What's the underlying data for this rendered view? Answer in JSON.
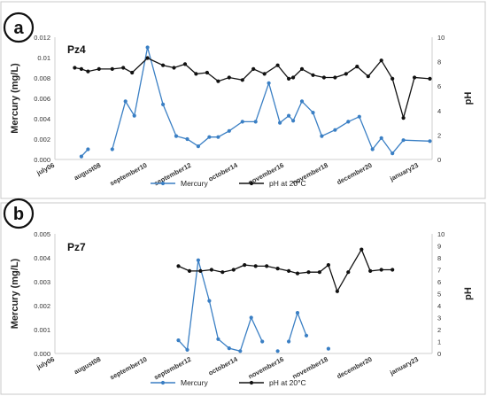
{
  "chart_data": [
    {
      "type": "line",
      "badge": "a",
      "title": "Pz4",
      "ylabel": "Mercury (mg/L)",
      "y2label": "pH",
      "ylim": [
        0,
        0.012
      ],
      "yticks": [
        "0.000",
        "0.002",
        "0.004",
        "0.006",
        "0.008",
        "0.01",
        "0.012"
      ],
      "y2lim": [
        0,
        10
      ],
      "y2ticks": [
        "0",
        "2",
        "4",
        "6",
        "8",
        "10"
      ],
      "xlim": [
        2006.5,
        2023.6
      ],
      "xticks": [
        {
          "label": "july06",
          "x": 2006.5
        },
        {
          "label": "august08",
          "x": 2008.6
        },
        {
          "label": "september10",
          "x": 2010.7
        },
        {
          "label": "september12",
          "x": 2012.7
        },
        {
          "label": "october14",
          "x": 2014.8
        },
        {
          "label": "november16",
          "x": 2016.9
        },
        {
          "label": "november18",
          "x": 2018.9
        },
        {
          "label": "december20",
          "x": 2020.9
        },
        {
          "label": "january23",
          "x": 2023.0
        }
      ],
      "legend": [
        "Mercury",
        "pH at 20°C"
      ],
      "series": [
        {
          "name": "Mercury",
          "axis": "left",
          "color": "#3a7fc4",
          "segments": [
            [
              [
                2007.7,
                0.0003
              ],
              [
                2008.0,
                0.001
              ]
            ],
            [
              [
                2009.1,
                0.001
              ],
              [
                2009.7,
                0.0057
              ],
              [
                2010.1,
                0.0043
              ],
              [
                2010.7,
                0.011
              ],
              [
                2011.4,
                0.0054
              ],
              [
                2012.0,
                0.0023
              ],
              [
                2012.5,
                0.002
              ],
              [
                2013.0,
                0.0013
              ],
              [
                2013.5,
                0.0022
              ],
              [
                2013.9,
                0.0022
              ],
              [
                2014.4,
                0.0028
              ],
              [
                2015.0,
                0.0037
              ],
              [
                2015.6,
                0.0037
              ],
              [
                2016.2,
                0.0075
              ],
              [
                2016.7,
                0.0036
              ],
              [
                2017.1,
                0.0043
              ],
              [
                2017.3,
                0.0038
              ],
              [
                2017.7,
                0.0057
              ],
              [
                2018.2,
                0.0046
              ],
              [
                2018.6,
                0.0023
              ],
              [
                2019.2,
                0.0029
              ],
              [
                2019.8,
                0.0037
              ],
              [
                2020.3,
                0.0042
              ],
              [
                2020.9,
                0.001
              ],
              [
                2021.3,
                0.0021
              ],
              [
                2021.8,
                0.0006
              ],
              [
                2022.3,
                0.0019
              ],
              [
                2023.5,
                0.0018
              ]
            ]
          ]
        },
        {
          "name": "pH at 20°C",
          "axis": "right",
          "color": "#111111",
          "segments": [
            [
              [
                2007.4,
                7.5
              ],
              [
                2007.7,
                7.4
              ],
              [
                2008.0,
                7.2
              ],
              [
                2008.5,
                7.4
              ],
              [
                2009.1,
                7.4
              ],
              [
                2009.6,
                7.5
              ],
              [
                2010.0,
                7.1
              ],
              [
                2010.7,
                8.3
              ],
              [
                2011.4,
                7.7
              ],
              [
                2011.9,
                7.5
              ],
              [
                2012.4,
                7.8
              ],
              [
                2012.9,
                7.0
              ],
              [
                2013.4,
                7.1
              ],
              [
                2013.9,
                6.4
              ],
              [
                2014.4,
                6.7
              ],
              [
                2015.0,
                6.5
              ],
              [
                2015.5,
                7.4
              ],
              [
                2016.0,
                7.0
              ],
              [
                2016.6,
                7.7
              ],
              [
                2017.1,
                6.6
              ],
              [
                2017.3,
                6.7
              ],
              [
                2017.7,
                7.4
              ],
              [
                2018.2,
                6.9
              ],
              [
                2018.7,
                6.7
              ],
              [
                2019.2,
                6.7
              ],
              [
                2019.7,
                7.0
              ],
              [
                2020.2,
                7.6
              ],
              [
                2020.7,
                6.8
              ],
              [
                2021.3,
                8.1
              ],
              [
                2021.8,
                6.6
              ],
              [
                2022.3,
                3.4
              ],
              [
                2022.8,
                6.7
              ],
              [
                2023.5,
                6.6
              ]
            ]
          ]
        }
      ]
    },
    {
      "type": "line",
      "badge": "b",
      "title": "Pz7",
      "ylabel": "Mercury (mg/L)",
      "y2label": "pH",
      "ylim": [
        0,
        0.005
      ],
      "yticks": [
        "0.000",
        "0.001",
        "0.002",
        "0.003",
        "0.004",
        "0.005"
      ],
      "y2lim": [
        0,
        10
      ],
      "y2ticks": [
        "0",
        "1",
        "2",
        "3",
        "4",
        "5",
        "6",
        "7",
        "8",
        "9",
        "10"
      ],
      "xlim": [
        2006.5,
        2023.6
      ],
      "xticks": [
        {
          "label": "july06",
          "x": 2006.5
        },
        {
          "label": "august08",
          "x": 2008.6
        },
        {
          "label": "september10",
          "x": 2010.7
        },
        {
          "label": "september12",
          "x": 2012.7
        },
        {
          "label": "october14",
          "x": 2014.8
        },
        {
          "label": "november16",
          "x": 2016.9
        },
        {
          "label": "november18",
          "x": 2018.9
        },
        {
          "label": "december20",
          "x": 2020.9
        },
        {
          "label": "january23",
          "x": 2023.0
        }
      ],
      "legend": [
        "Mercury",
        "pH at 20°C"
      ],
      "series": [
        {
          "name": "Mercury",
          "axis": "left",
          "color": "#3a7fc4",
          "segments": [
            [
              [
                2012.1,
                0.00055
              ],
              [
                2012.5,
                0.00015
              ],
              [
                2013.0,
                0.0039
              ],
              [
                2013.5,
                0.0022
              ],
              [
                2013.9,
                0.0006
              ],
              [
                2014.4,
                0.00022
              ],
              [
                2014.9,
                0.0001
              ],
              [
                2015.4,
                0.0015
              ],
              [
                2015.9,
                0.0005
              ]
            ],
            [
              [
                2016.6,
                0.0001
              ]
            ],
            [
              [
                2017.1,
                0.0005
              ],
              [
                2017.5,
                0.0017
              ],
              [
                2017.9,
                0.00075
              ]
            ],
            [
              [
                2018.9,
                0.0002
              ]
            ]
          ]
        },
        {
          "name": "pH at 20°C",
          "axis": "right",
          "color": "#111111",
          "segments": [
            [
              [
                2012.1,
                7.3
              ],
              [
                2012.6,
                6.9
              ],
              [
                2013.1,
                6.9
              ],
              [
                2013.6,
                7.0
              ],
              [
                2014.1,
                6.8
              ],
              [
                2014.6,
                7.0
              ],
              [
                2015.1,
                7.4
              ],
              [
                2015.6,
                7.3
              ],
              [
                2016.1,
                7.3
              ],
              [
                2016.6,
                7.1
              ],
              [
                2017.1,
                6.9
              ],
              [
                2017.5,
                6.7
              ],
              [
                2018.0,
                6.8
              ],
              [
                2018.5,
                6.8
              ],
              [
                2018.9,
                7.4
              ],
              [
                2019.3,
                5.2
              ],
              [
                2019.8,
                6.8
              ],
              [
                2020.4,
                8.7
              ],
              [
                2020.8,
                6.9
              ],
              [
                2021.3,
                7.0
              ],
              [
                2021.8,
                7.0
              ]
            ]
          ]
        }
      ]
    }
  ]
}
